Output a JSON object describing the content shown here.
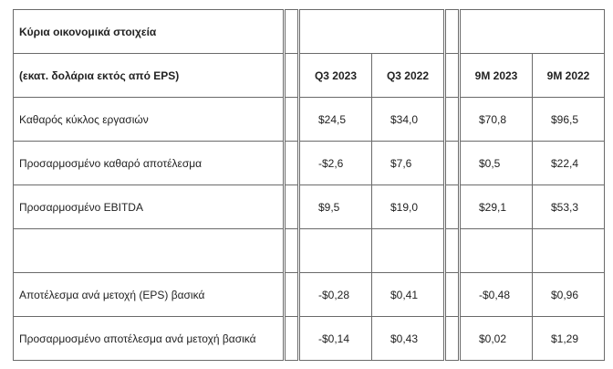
{
  "table": {
    "title": "Κύρια οικονομικά στοιχεία",
    "subtitle": "(εκατ. δολάρια εκτός από EPS)",
    "columns": [
      "Q3 2023",
      "Q3 2022",
      "9M 2023",
      "9M 2022"
    ],
    "rows": [
      [
        "Καθαρός κύκλος εργασιών",
        "$24,5",
        "$34,0",
        "$70,8",
        "$96,5"
      ],
      [
        "Προσαρμοσμένο καθαρό αποτέλεσμα",
        "-$2,6",
        "$7,6",
        "$0,5",
        "$22,4"
      ],
      [
        "Προσαρμοσμένο EBITDA",
        "$9,5",
        "$19,0",
        "$29,1",
        "$53,3"
      ],
      [
        "Αποτέλεσμα ανά μετοχή (EPS) βασικά",
        "-$0,28",
        "$0,41",
        "-$0,48",
        "$0,96"
      ],
      [
        "Προσαρμοσμένο αποτέλεσμα ανά μετοχή βασικά",
        "-$0,14",
        "$0,43",
        "$0,02",
        "$1,29"
      ]
    ]
  }
}
